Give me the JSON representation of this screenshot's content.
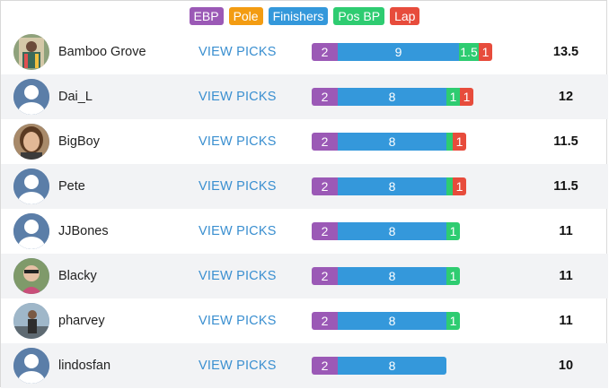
{
  "legend": [
    {
      "label": "EBP",
      "color": "#9b59b6"
    },
    {
      "label": "Pole",
      "color": "#f39c12"
    },
    {
      "label": "Finishers",
      "color": "#3498db"
    },
    {
      "label": "Pos BP",
      "color": "#2ecc71"
    },
    {
      "label": "Lap",
      "color": "#e74c3c"
    }
  ],
  "view_picks_label": "VIEW PICKS",
  "rows": [
    {
      "name": "Bamboo Grove",
      "avatar": "photo",
      "ebp": "2",
      "fin": "9",
      "pos": "1.5",
      "lap": "1",
      "score": "13.5"
    },
    {
      "name": "Dai_L",
      "avatar": "default-user",
      "ebp": "2",
      "fin": "8",
      "pos": "1",
      "lap": "1",
      "score": "12"
    },
    {
      "name": "BigBoy",
      "avatar": "photo",
      "ebp": "2",
      "fin": "8",
      "pos": "",
      "lap": "1",
      "score": "11.5"
    },
    {
      "name": "Pete",
      "avatar": "default-user",
      "ebp": "2",
      "fin": "8",
      "pos": "",
      "lap": "1",
      "score": "11.5"
    },
    {
      "name": "JJBones",
      "avatar": "default-user",
      "ebp": "2",
      "fin": "8",
      "pos": "1",
      "lap": "",
      "score": "11"
    },
    {
      "name": "Blacky",
      "avatar": "photo",
      "ebp": "2",
      "fin": "8",
      "pos": "1",
      "lap": "",
      "score": "11"
    },
    {
      "name": "pharvey",
      "avatar": "photo",
      "ebp": "2",
      "fin": "8",
      "pos": "1",
      "lap": "",
      "score": "11"
    },
    {
      "name": "lindosfan",
      "avatar": "default-user",
      "ebp": "2",
      "fin": "8",
      "pos": "",
      "lap": "",
      "score": "10"
    }
  ]
}
